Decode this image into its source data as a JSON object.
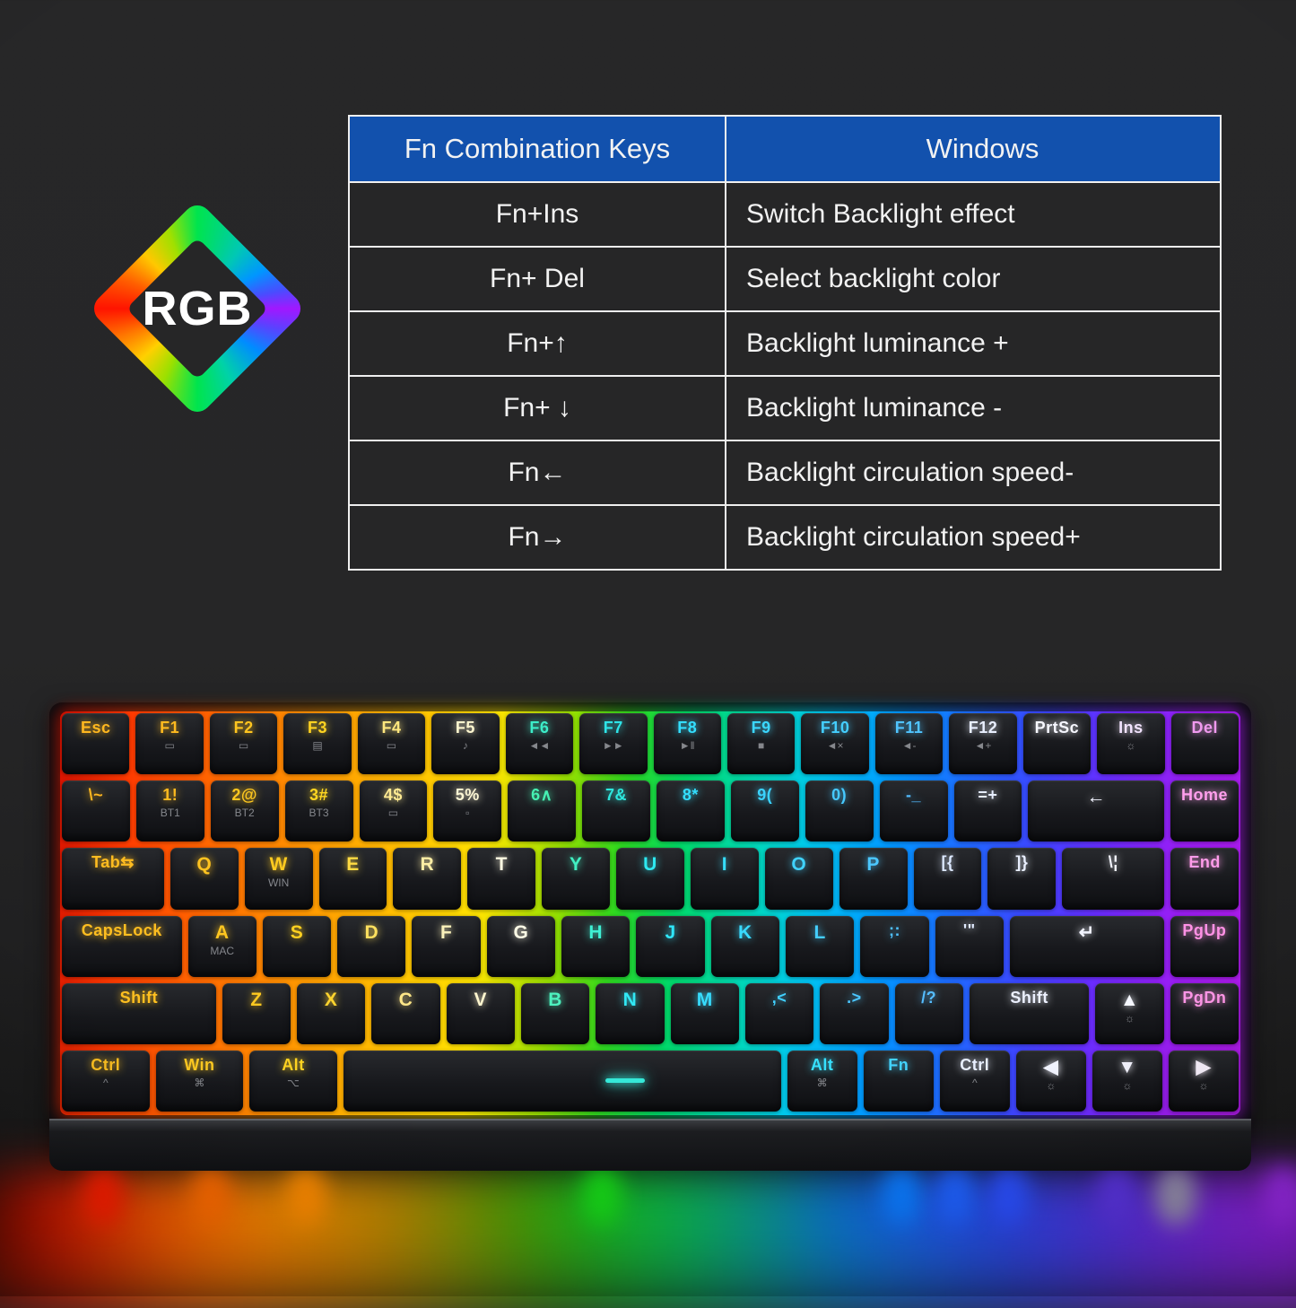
{
  "logo": {
    "text": "RGB"
  },
  "colors": {
    "table_header_bg": "#1251ad",
    "table_border": "#efefef",
    "led_cyan": "#35e8d8",
    "background": "#262627"
  },
  "table": {
    "header": {
      "col1": "Fn Combination Keys",
      "col2": "Windows"
    },
    "rows": [
      {
        "keys": "Fn+Ins",
        "action": "Switch Backlight effect"
      },
      {
        "keys": "Fn+ Del",
        "action": "Select backlight color"
      },
      {
        "keys": "Fn+↑",
        "action": "Backlight luminance +"
      },
      {
        "keys": "Fn+ ↓",
        "action": "Backlight luminance -"
      },
      {
        "keys": "Fn←",
        "action": "Backlight circulation speed-"
      },
      {
        "keys": "Fn→",
        "action": "Backlight circulation speed+"
      }
    ]
  },
  "keyboard": {
    "sub_color": "#85878c",
    "rows": [
      {
        "keys": [
          {
            "label": "Esc",
            "c": "#ffb71f"
          },
          {
            "label": "F1",
            "sub": "▭",
            "c": "#ffba1f"
          },
          {
            "label": "F2",
            "sub": "▭",
            "c": "#ffc51f"
          },
          {
            "label": "F3",
            "sub": "▤",
            "c": "#ffd321"
          },
          {
            "label": "F4",
            "sub": "▭",
            "c": "#ffe77e"
          },
          {
            "label": "F5",
            "sub": "♪",
            "c": "#fdf6cf"
          },
          {
            "label": "F6",
            "sub": "◄◄",
            "c": "#3cecc8"
          },
          {
            "label": "F7",
            "sub": "►►",
            "c": "#2ee4e8"
          },
          {
            "label": "F8",
            "sub": "►‖",
            "c": "#33deff"
          },
          {
            "label": "F9",
            "sub": "■",
            "c": "#3bd7ff"
          },
          {
            "label": "F10",
            "sub": "◄×",
            "c": "#44ceff"
          },
          {
            "label": "F11",
            "sub": "◄-",
            "c": "#50c4ff"
          },
          {
            "label": "F12",
            "sub": "◄+",
            "c": "#e9efff"
          },
          {
            "label": "PrtSc",
            "c": "#f6f7ff"
          },
          {
            "label": "Ins",
            "sub": "☼",
            "c": "#f3e4ff"
          },
          {
            "label": "Del",
            "c": "#f09aef"
          }
        ]
      },
      {
        "keys": [
          {
            "label": "\\~",
            "n": "tilde",
            "c": "#ffb71f"
          },
          {
            "label": "1!",
            "n": "1",
            "sub": "BT1",
            "c": "#ffbb1f"
          },
          {
            "label": "2@",
            "n": "2",
            "sub": "BT2",
            "c": "#ffc81f"
          },
          {
            "label": "3#",
            "n": "3",
            "sub": "BT3",
            "c": "#ffd621"
          },
          {
            "label": "4$",
            "n": "4",
            "sub": "▭",
            "c": "#ffea92"
          },
          {
            "label": "5%",
            "n": "5",
            "sub": "▫",
            "c": "#fcf6d4"
          },
          {
            "label": "6∧",
            "n": "6",
            "c": "#46f0b2"
          },
          {
            "label": "7&",
            "n": "7",
            "c": "#2de7dd"
          },
          {
            "label": "8*",
            "n": "8",
            "c": "#33dfff"
          },
          {
            "label": "9(",
            "n": "9",
            "c": "#3bd3ff"
          },
          {
            "label": "0)",
            "n": "0",
            "c": "#46c9ff"
          },
          {
            "label": "-_",
            "n": "minus",
            "c": "#52bcff"
          },
          {
            "label": "=+",
            "n": "equals",
            "c": "#e7eeff"
          },
          {
            "label": "←",
            "n": "backspace",
            "u": 2,
            "c": "#f2f4ff"
          },
          {
            "label": "Home",
            "c": "#ff9fec"
          }
        ]
      },
      {
        "keys": [
          {
            "label": "Tab⇆",
            "n": "tab",
            "u": 1.5,
            "c": "#ffbc20"
          },
          {
            "label": "Q",
            "c": "#ffc320"
          },
          {
            "label": "W",
            "sub": "WIN",
            "c": "#ffcb20"
          },
          {
            "label": "E",
            "c": "#ffdb42"
          },
          {
            "label": "R",
            "c": "#fbeda4"
          },
          {
            "label": "T",
            "c": "#fdf9e2"
          },
          {
            "label": "Y",
            "c": "#41f0c2"
          },
          {
            "label": "U",
            "c": "#2ee9f1"
          },
          {
            "label": "I",
            "c": "#36dfff"
          },
          {
            "label": "O",
            "c": "#40d3ff"
          },
          {
            "label": "P",
            "c": "#4bc7ff"
          },
          {
            "label": "[{",
            "n": "bracket-open",
            "c": "#dce8ff"
          },
          {
            "label": "]}",
            "n": "bracket-close",
            "c": "#eaf0ff"
          },
          {
            "label": "\\¦",
            "n": "backslash",
            "u": 1.5,
            "c": "#f4f6ff"
          },
          {
            "label": "End",
            "c": "#fe9ce9"
          }
        ]
      },
      {
        "keys": [
          {
            "label": "CapsLock",
            "u": 1.75,
            "c": "#ffbe20"
          },
          {
            "label": "A",
            "sub": "MAC",
            "c": "#ffc620"
          },
          {
            "label": "S",
            "c": "#ffd020"
          },
          {
            "label": "D",
            "c": "#ffe05e"
          },
          {
            "label": "F",
            "c": "#faf1ba"
          },
          {
            "label": "G",
            "c": "#fefbe6"
          },
          {
            "label": "H",
            "c": "#3ff0d4"
          },
          {
            "label": "J",
            "c": "#2fe6f9"
          },
          {
            "label": "K",
            "c": "#39daff"
          },
          {
            "label": "L",
            "c": "#44ceff"
          },
          {
            "label": ";:",
            "n": "semicolon",
            "c": "#4fc2ff"
          },
          {
            "label": "'\"",
            "n": "quote",
            "c": "#e1eaff"
          },
          {
            "label": "↵",
            "n": "enter",
            "u": 2.25,
            "c": "#f2f4ff"
          },
          {
            "label": "PgUp",
            "c": "#ff91e5"
          }
        ]
      },
      {
        "keys": [
          {
            "label": "Shift",
            "u": 2.25,
            "c": "#ffc020"
          },
          {
            "label": "Z",
            "c": "#ffc920"
          },
          {
            "label": "X",
            "c": "#ffd42e"
          },
          {
            "label": "C",
            "c": "#ffe788"
          },
          {
            "label": "V",
            "c": "#fdf5ce"
          },
          {
            "label": "B",
            "c": "#4df1be"
          },
          {
            "label": "N",
            "c": "#31e8f5"
          },
          {
            "label": "M",
            "c": "#37ddff"
          },
          {
            "label": ",<",
            "n": "comma",
            "c": "#41d1ff"
          },
          {
            "label": ".>",
            "n": "period",
            "c": "#4bc7ff"
          },
          {
            "label": "/?",
            "n": "slash",
            "c": "#55bdff"
          },
          {
            "label": "Shift",
            "n": "shift-right",
            "u": 1.75,
            "c": "#edf1ff"
          },
          {
            "label": "▲",
            "n": "arrow-up",
            "sub": "☼",
            "c": "#f5f7ff"
          },
          {
            "label": "PgDn",
            "c": "#ff96e7"
          }
        ]
      },
      {
        "keys": [
          {
            "label": "Ctrl",
            "sub": "^",
            "u": 1.25,
            "c": "#ffc221"
          },
          {
            "label": "Win",
            "sub": "⌘",
            "u": 1.25,
            "c": "#ffca21"
          },
          {
            "label": "Alt",
            "sub": "⌥",
            "u": 1.25,
            "c": "#ffd321"
          },
          {
            "label": "",
            "n": "space",
            "u": 6.25,
            "led": true,
            "c": "#cccccc"
          },
          {
            "label": "Alt",
            "n": "alt-right",
            "sub": "⌘",
            "c": "#37e1ff"
          },
          {
            "label": "Fn",
            "c": "#43d3ff"
          },
          {
            "label": "Ctrl",
            "n": "ctrl-right",
            "sub": "^",
            "c": "#e8efff"
          },
          {
            "label": "◀",
            "n": "arrow-left",
            "sub": "☼",
            "c": "#f2f4ff"
          },
          {
            "label": "▼",
            "n": "arrow-down",
            "sub": "☼",
            "c": "#f5f5ff"
          },
          {
            "label": "▶",
            "n": "arrow-right",
            "sub": "☼",
            "c": "#fbf3ff"
          }
        ]
      }
    ]
  }
}
